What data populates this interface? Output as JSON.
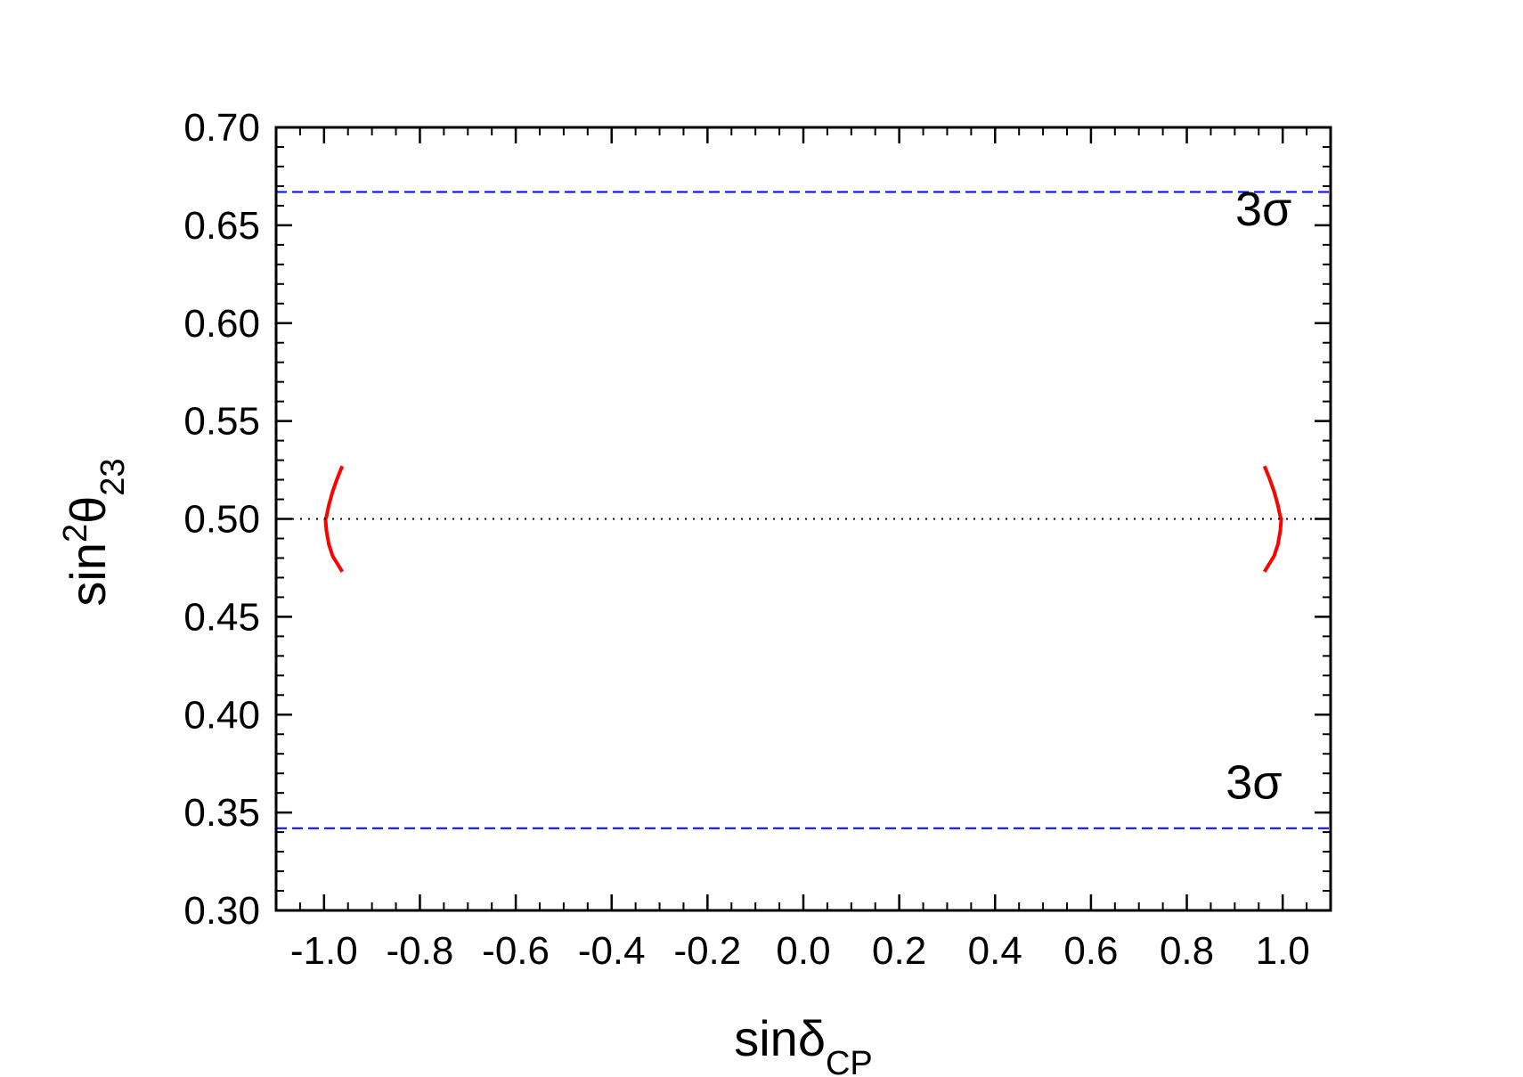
{
  "chart_data": {
    "type": "line",
    "title": "",
    "xlabel": {
      "base": "sin",
      "greek": "δ",
      "sub": "CP"
    },
    "ylabel": {
      "base": "sin",
      "sup": "2",
      "greek": "θ",
      "sub": "23"
    },
    "xlim": [
      -1.1,
      1.1
    ],
    "ylim": [
      0.3,
      0.7
    ],
    "xticks": [
      -1.0,
      -0.8,
      -0.6,
      -0.4,
      -0.2,
      0.0,
      0.2,
      0.4,
      0.6,
      0.8,
      1.0
    ],
    "xtick_labels": [
      "-1.0",
      "-0.8",
      "-0.6",
      "-0.4",
      "-0.2",
      "0.0",
      "0.2",
      "0.4",
      "0.6",
      "0.8",
      "1.0"
    ],
    "yticks": [
      0.3,
      0.35,
      0.4,
      0.45,
      0.5,
      0.55,
      0.6,
      0.65,
      0.7
    ],
    "ytick_labels": [
      "0.30",
      "0.35",
      "0.40",
      "0.45",
      "0.50",
      "0.55",
      "0.60",
      "0.65",
      "0.70"
    ],
    "grid": false,
    "series": [
      {
        "style": "solid",
        "color": "#ff0000",
        "x": [
          -0.962,
          -0.972,
          -0.982,
          -0.99,
          -0.995,
          -0.997,
          -0.995,
          -0.99,
          -0.982,
          -0.972,
          -0.962
        ],
        "y": [
          0.527,
          0.521,
          0.514,
          0.507,
          0.501,
          0.5,
          0.494,
          0.487,
          0.481,
          0.477,
          0.473
        ]
      },
      {
        "style": "solid",
        "color": "#ff0000",
        "x": [
          0.962,
          0.972,
          0.982,
          0.99,
          0.995,
          0.997,
          0.995,
          0.99,
          0.982,
          0.972,
          0.962
        ],
        "y": [
          0.527,
          0.521,
          0.514,
          0.507,
          0.501,
          0.5,
          0.494,
          0.487,
          0.481,
          0.477,
          0.473
        ]
      },
      {
        "style": "dashed",
        "color": "#0000ff",
        "x": [
          -1.1,
          1.1
        ],
        "y": [
          0.667,
          0.667
        ]
      },
      {
        "style": "dashed",
        "color": "#0000ff",
        "x": [
          -1.1,
          1.1
        ],
        "y": [
          0.342,
          0.342
        ]
      },
      {
        "style": "dotted",
        "color": "#000000",
        "x": [
          -1.1,
          1.1
        ],
        "y": [
          0.5,
          0.5
        ]
      }
    ],
    "annotations": [
      {
        "text": "3σ",
        "x": 0.96,
        "y": 0.65
      },
      {
        "text": "3σ",
        "x": 0.94,
        "y": 0.357
      }
    ]
  }
}
